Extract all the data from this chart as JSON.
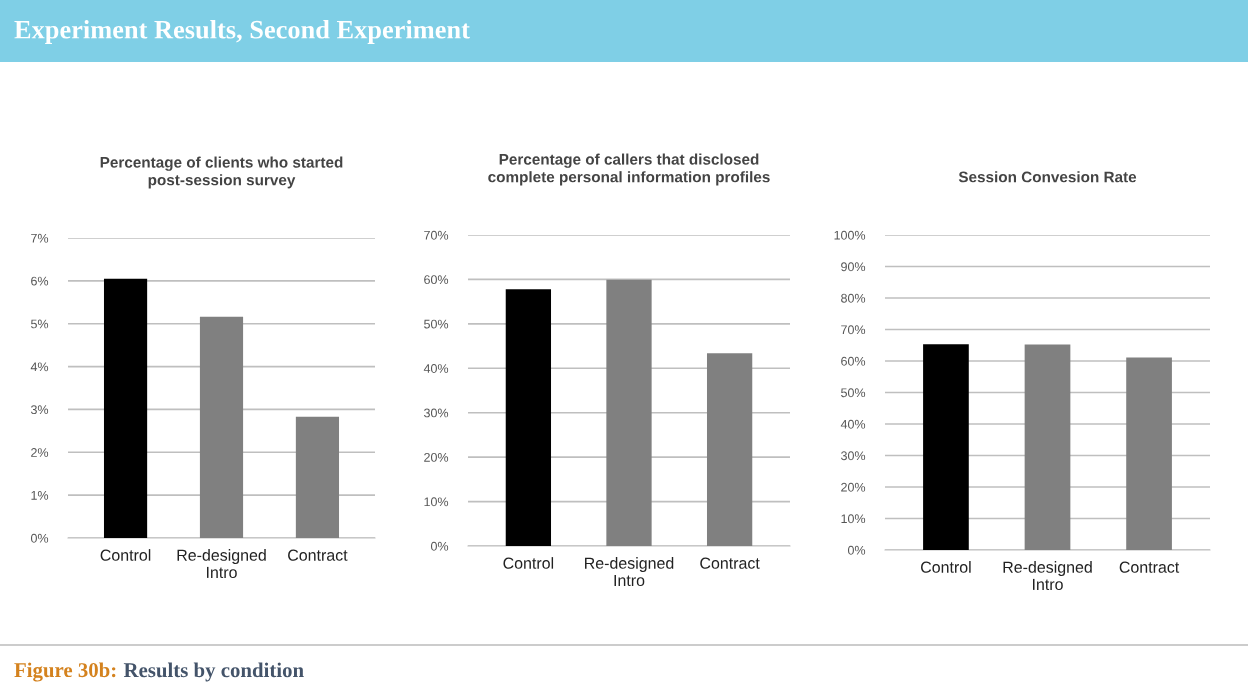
{
  "chart_data": [
    {
      "type": "bar",
      "title": "Percentage of clients who started\npost-session survey",
      "categories": [
        "Control",
        "Re-designed\nIntro",
        "Contract"
      ],
      "values": [
        6.05,
        5.16,
        2.83
      ],
      "colors": [
        "#000000",
        "#808080",
        "#808080"
      ],
      "ylim": [
        0,
        7
      ],
      "yticks": [
        {
          "value": 0,
          "label": "0%"
        },
        {
          "value": 1,
          "label": "1%"
        },
        {
          "value": 2,
          "label": "2%"
        },
        {
          "value": 3,
          "label": "3%"
        },
        {
          "value": 4,
          "label": "4%"
        },
        {
          "value": 5,
          "label": "5%"
        },
        {
          "value": 6,
          "label": "6%"
        },
        {
          "value": 7,
          "label": "7%"
        }
      ],
      "grid": "y",
      "annotations": [
        "Experiment Results, Second Experiment",
        "Figure 30b:",
        "Results by condition"
      ]
    },
    {
      "type": "bar",
      "title": "Percentage of callers that disclosed\ncomplete personal information profiles",
      "categories": [
        "Control",
        "Re-designed\nIntro",
        "Contract"
      ],
      "values": [
        57.8,
        59.9,
        43.4
      ],
      "colors": [
        "#000000",
        "#808080",
        "#808080"
      ],
      "ylim": [
        0,
        70
      ],
      "yticks": [
        {
          "value": 0,
          "label": "0%"
        },
        {
          "value": 10,
          "label": "10%"
        },
        {
          "value": 20,
          "label": "20%"
        },
        {
          "value": 30,
          "label": "30%"
        },
        {
          "value": 40,
          "label": "40%"
        },
        {
          "value": 50,
          "label": "50%"
        },
        {
          "value": 60,
          "label": "60%"
        },
        {
          "value": 70,
          "label": "70%"
        }
      ],
      "grid": "y"
    },
    {
      "type": "bar",
      "title": "Session Convesion Rate",
      "categories": [
        "Control",
        "Re-designed\nIntro",
        "Contract"
      ],
      "values": [
        65.3,
        65.2,
        61.1
      ],
      "colors": [
        "#000000",
        "#808080",
        "#808080"
      ],
      "ylim": [
        0,
        100
      ],
      "yticks": [
        {
          "value": 0,
          "label": "0%"
        },
        {
          "value": 10,
          "label": "10%"
        },
        {
          "value": 20,
          "label": "20%"
        },
        {
          "value": 30,
          "label": "30%"
        },
        {
          "value": 40,
          "label": "40%"
        },
        {
          "value": 50,
          "label": "50%"
        },
        {
          "value": 60,
          "label": "60%"
        },
        {
          "value": 70,
          "label": "70%"
        },
        {
          "value": 80,
          "label": "80%"
        },
        {
          "value": 90,
          "label": "90%"
        },
        {
          "value": 100,
          "label": "100%"
        }
      ],
      "grid": "y"
    }
  ]
}
